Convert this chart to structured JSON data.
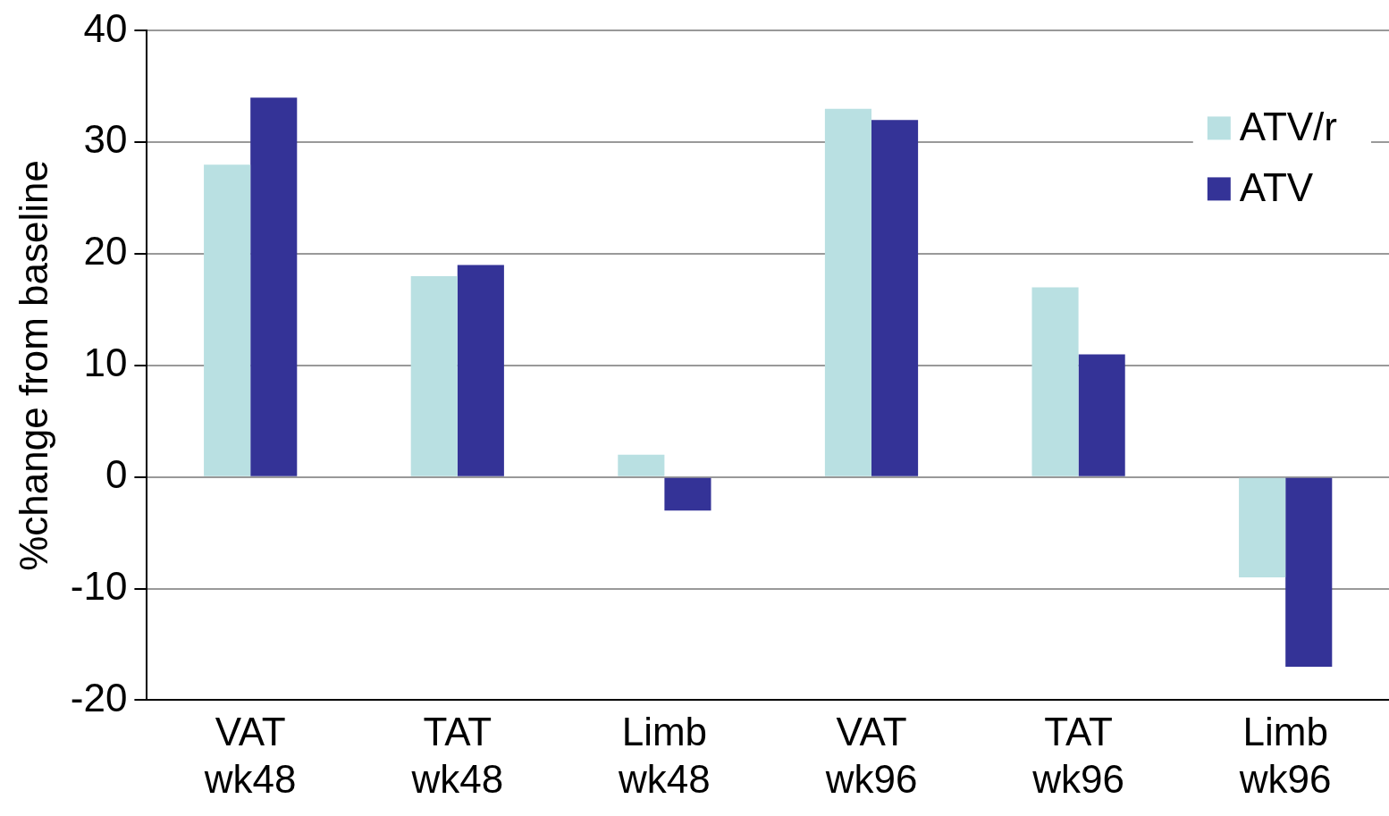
{
  "chart_data": {
    "type": "bar",
    "ylabel": "%change from baseline",
    "categories": [
      "VAT wk48",
      "TAT wk48",
      "Limb wk48",
      "VAT wk96",
      "TAT wk96",
      "Limb wk96"
    ],
    "series": [
      {
        "name": "ATV/r",
        "color": "#b9e0e2",
        "values": [
          28,
          18,
          2,
          33,
          17,
          -9
        ]
      },
      {
        "name": "ATV",
        "color": "#343397",
        "values": [
          34,
          19,
          -3,
          32,
          11,
          -17
        ]
      }
    ],
    "ylim": [
      -20,
      40
    ],
    "yticks": [
      -20,
      -10,
      0,
      10,
      20,
      30,
      40
    ],
    "grid": "y",
    "legend": "top right"
  }
}
